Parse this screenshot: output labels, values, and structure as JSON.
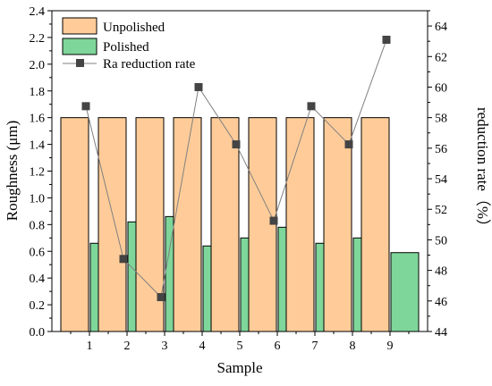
{
  "chart_data": {
    "type": "bar",
    "xlabel": "Sample",
    "ylabel_left": "Roughness (μm)",
    "ylabel_right": "reduction rate（%）",
    "categories": [
      "1",
      "2",
      "3",
      "4",
      "5",
      "6",
      "7",
      "8",
      "9"
    ],
    "ylim_left": [
      0,
      2.4
    ],
    "yticks_left": [
      "0.0",
      "0.2",
      "0.4",
      "0.6",
      "0.8",
      "1.0",
      "1.2",
      "1.4",
      "1.6",
      "1.8",
      "2.0",
      "2.2",
      "2.4"
    ],
    "ylim_right": [
      44,
      65
    ],
    "yticks_right": [
      "44",
      "46",
      "48",
      "50",
      "52",
      "54",
      "56",
      "58",
      "60",
      "62",
      "64"
    ],
    "series": [
      {
        "name": "Unpolished",
        "axis": "left",
        "kind": "bar",
        "color": "#FFCC99",
        "values": [
          1.6,
          1.6,
          1.6,
          1.6,
          1.6,
          1.6,
          1.6,
          1.6,
          1.6
        ]
      },
      {
        "name": "Polished",
        "axis": "left",
        "kind": "bar",
        "color": "#7FD69A",
        "values": [
          0.66,
          0.82,
          0.86,
          0.64,
          0.7,
          0.78,
          0.66,
          0.7,
          0.59
        ]
      },
      {
        "name": "Ra reduction rate",
        "axis": "right",
        "kind": "line",
        "color": "#808080",
        "marker_color": "#444444",
        "values": [
          58.75,
          48.75,
          46.25,
          60.0,
          56.25,
          51.25,
          58.75,
          56.25,
          63.1
        ]
      }
    ],
    "legend_position": "top-left",
    "grid": false
  }
}
